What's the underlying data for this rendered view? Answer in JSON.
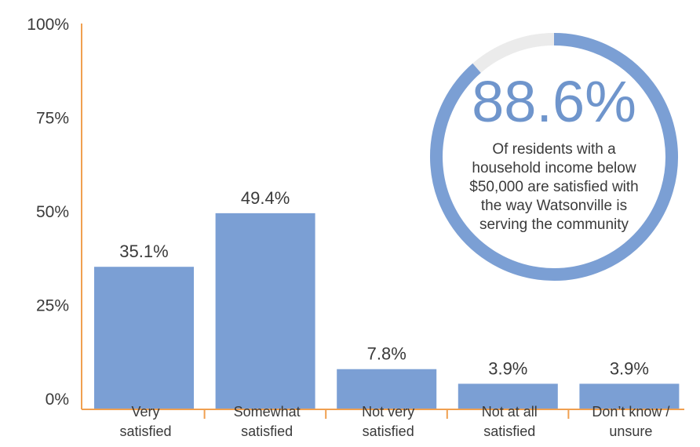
{
  "chart_data": {
    "type": "bar",
    "categories": [
      [
        "Very",
        "satisfied"
      ],
      [
        "Somewhat",
        "satisfied"
      ],
      [
        "Not very",
        "satisfied"
      ],
      [
        "Not at all",
        "satisfied"
      ],
      [
        "Don’t know /",
        "unsure"
      ]
    ],
    "values": [
      35.1,
      49.4,
      7.8,
      3.9,
      3.9
    ],
    "data_labels": [
      "35.1%",
      "49.4%",
      "7.8%",
      "3.9%",
      "3.9%"
    ],
    "yticks": [
      "0%",
      "25%",
      "50%",
      "75%",
      "100%"
    ],
    "ylim": [
      0,
      100
    ],
    "grid": false,
    "colors": {
      "bar": "#7b9fd4",
      "axis": "#f0a050",
      "ring": "#7b9fd4",
      "ring_track": "#ebebeb"
    }
  },
  "callout": {
    "value": 88.6,
    "value_label": "88.6%",
    "lines": [
      "Of residents with a",
      "household income below",
      "$50,000 are satisfied with",
      "the way Watsonville is",
      "serving the community"
    ]
  }
}
